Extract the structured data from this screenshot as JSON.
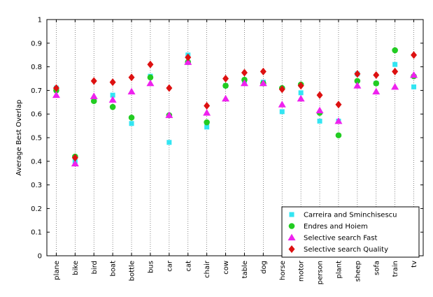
{
  "chart_data": {
    "type": "scatter",
    "title": "",
    "xlabel": "",
    "ylabel": "Average Best Overlap",
    "ylim": [
      0,
      1
    ],
    "yticks": [
      0,
      0.1,
      0.2,
      0.3,
      0.4,
      0.5,
      0.6,
      0.7,
      0.8,
      0.9,
      1
    ],
    "ytick_labels": [
      "0",
      "0.1",
      "0.2",
      "0.3",
      "0.4",
      "0.5",
      "0.6",
      "0.7",
      "0.8",
      "0.9",
      "1"
    ],
    "grid": "dotted vertical lines at each category",
    "legend_position": "bottom-right",
    "categories": [
      "plane",
      "bike",
      "bird",
      "boat",
      "bottle",
      "bus",
      "car",
      "cat",
      "chair",
      "cow",
      "table",
      "dog",
      "horse",
      "motor",
      "person",
      "plant",
      "sheep",
      "sofa",
      "train",
      "tv"
    ],
    "series": [
      {
        "name": "Carreira and Sminchisescu",
        "marker": "square",
        "color": "#33e5f2",
        "values": [
          0.71,
          0.4,
          0.66,
          0.68,
          0.56,
          0.76,
          0.48,
          0.85,
          0.545,
          0.72,
          0.74,
          0.735,
          0.61,
          0.69,
          0.57,
          0.57,
          0.77,
          0.73,
          0.81,
          0.715
        ]
      },
      {
        "name": "Endres and Hoiem",
        "marker": "circle",
        "color": "#22cc22",
        "values": [
          0.7,
          0.42,
          0.655,
          0.63,
          0.585,
          0.755,
          0.595,
          0.82,
          0.565,
          0.72,
          0.745,
          0.73,
          0.71,
          0.725,
          0.605,
          0.51,
          0.74,
          0.73,
          0.87,
          0.76
        ]
      },
      {
        "name": "Selective search Fast",
        "marker": "triangle",
        "color": "#ee22ee",
        "values": [
          0.68,
          0.39,
          0.675,
          0.66,
          0.695,
          0.73,
          0.595,
          0.82,
          0.605,
          0.665,
          0.73,
          0.73,
          0.64,
          0.665,
          0.615,
          0.57,
          0.72,
          0.695,
          0.715,
          0.765
        ]
      },
      {
        "name": "Selective search Quality",
        "marker": "diamond",
        "color": "#dd1111",
        "values": [
          0.71,
          0.415,
          0.74,
          0.735,
          0.755,
          0.81,
          0.71,
          0.84,
          0.635,
          0.75,
          0.775,
          0.78,
          0.705,
          0.72,
          0.68,
          0.64,
          0.77,
          0.765,
          0.78,
          0.85
        ]
      }
    ]
  }
}
